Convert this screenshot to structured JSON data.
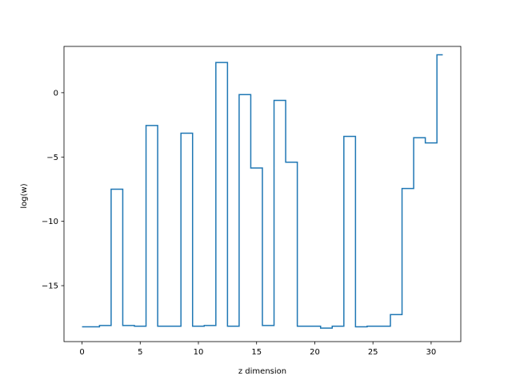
{
  "chart_data": {
    "type": "line",
    "step": true,
    "xlabel": "z dimension",
    "ylabel": "log(w)",
    "xlim": [
      -1.55,
      32.55
    ],
    "ylim": [
      -19.35,
      3.6
    ],
    "xticks": [
      0,
      5,
      10,
      15,
      20,
      25,
      30
    ],
    "yticks": [
      -15,
      -10,
      -5,
      0
    ],
    "grid": false,
    "series": [
      {
        "color": "#1f77b4",
        "x": [
          0,
          1,
          2,
          3,
          4,
          5,
          6,
          7,
          8,
          9,
          10,
          11,
          12,
          13,
          14,
          15,
          16,
          17,
          18,
          19,
          20,
          21,
          22,
          23,
          24,
          25,
          26,
          27,
          28,
          29,
          30,
          31
        ],
        "y": [
          -18.2,
          -18.2,
          -18.1,
          -7.5,
          -18.1,
          -18.15,
          -2.55,
          -18.15,
          -18.15,
          -3.15,
          -18.15,
          -18.1,
          2.35,
          -18.15,
          -0.15,
          -5.85,
          -18.1,
          -0.6,
          -5.4,
          -18.15,
          -18.15,
          -18.3,
          -18.15,
          -3.4,
          -18.2,
          -18.15,
          -18.15,
          -17.25,
          -7.45,
          -3.5,
          -3.9,
          2.95
        ]
      }
    ]
  }
}
